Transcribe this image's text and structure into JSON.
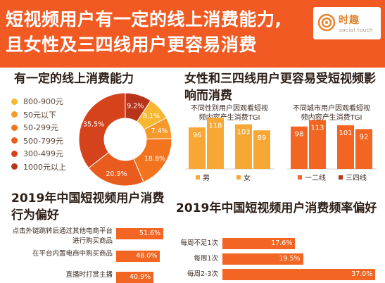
{
  "header": {
    "title_line1": "短视频用户有一定的线上消费能力,",
    "title_line2": "且女性及三四线用户更容易消费",
    "logo_name": "时趣",
    "logo_sub": "social touch"
  },
  "colors": {
    "brand": "#f15a22",
    "bar_primary": "#f26522",
    "bar_secondary": "#f7a834",
    "donut": [
      "#f7b733",
      "#f59a2a",
      "#f3741f",
      "#e95c1e",
      "#d5431c",
      "#b8351b"
    ]
  },
  "chart_data": [
    {
      "type": "pie",
      "title": "有一定的线上消费能力",
      "categories": [
        "800-900元",
        "50元以下",
        "50-299元",
        "500-799元",
        "300-499元",
        "1000元以上"
      ],
      "values": [
        8.1,
        7.4,
        18.8,
        20.9,
        35.5,
        9.2
      ],
      "data_labels": [
        "8.1%",
        "7.4%",
        "18.8%",
        "20.9%",
        "35.5%",
        "9.2%"
      ],
      "legend_position": "left"
    },
    {
      "type": "bar",
      "title": "女性和三四线用户更容易受短视频影响而消费",
      "subtitle": "不同性别用户因观看短视频内容产生消费TGI",
      "categories": [
        "男",
        "女"
      ],
      "series": [
        {
          "values": [
            96,
            118
          ]
        },
        {
          "values": [
            103,
            89
          ]
        }
      ],
      "legend": [
        "男",
        "女"
      ],
      "ylim": [
        0,
        130
      ]
    },
    {
      "type": "bar",
      "subtitle": "不同城市用户因观看短视频内容产生消费TGI",
      "categories": [
        "一二线",
        "三四线"
      ],
      "series": [
        {
          "values": [
            98,
            113
          ]
        },
        {
          "values": [
            101,
            92
          ]
        }
      ],
      "legend": [
        "一二线",
        "三四线"
      ],
      "ylim": [
        0,
        130
      ]
    },
    {
      "type": "bar",
      "orientation": "horizontal",
      "title": "2019年中国短视频用户消费行为偏好",
      "categories": [
        "点击外链跳转后通过其他电商平台进行购买商品",
        "在平台内置电商中购买商品",
        "直播时打赏主播"
      ],
      "values": [
        51.6,
        48.0,
        40.9
      ],
      "data_labels": [
        "51.6%",
        "48.0%",
        "40.9%"
      ],
      "xlim": [
        0,
        60
      ]
    },
    {
      "type": "bar",
      "orientation": "horizontal",
      "title": "2019年中国短视频用户消费频率偏好",
      "categories": [
        "每周不足1次",
        "每周1次",
        "每周2-3次"
      ],
      "values": [
        17.6,
        19.5,
        37.0
      ],
      "data_labels": [
        "17.6%",
        "19.5%",
        "37.0%"
      ],
      "xlim": [
        0,
        40
      ]
    }
  ]
}
